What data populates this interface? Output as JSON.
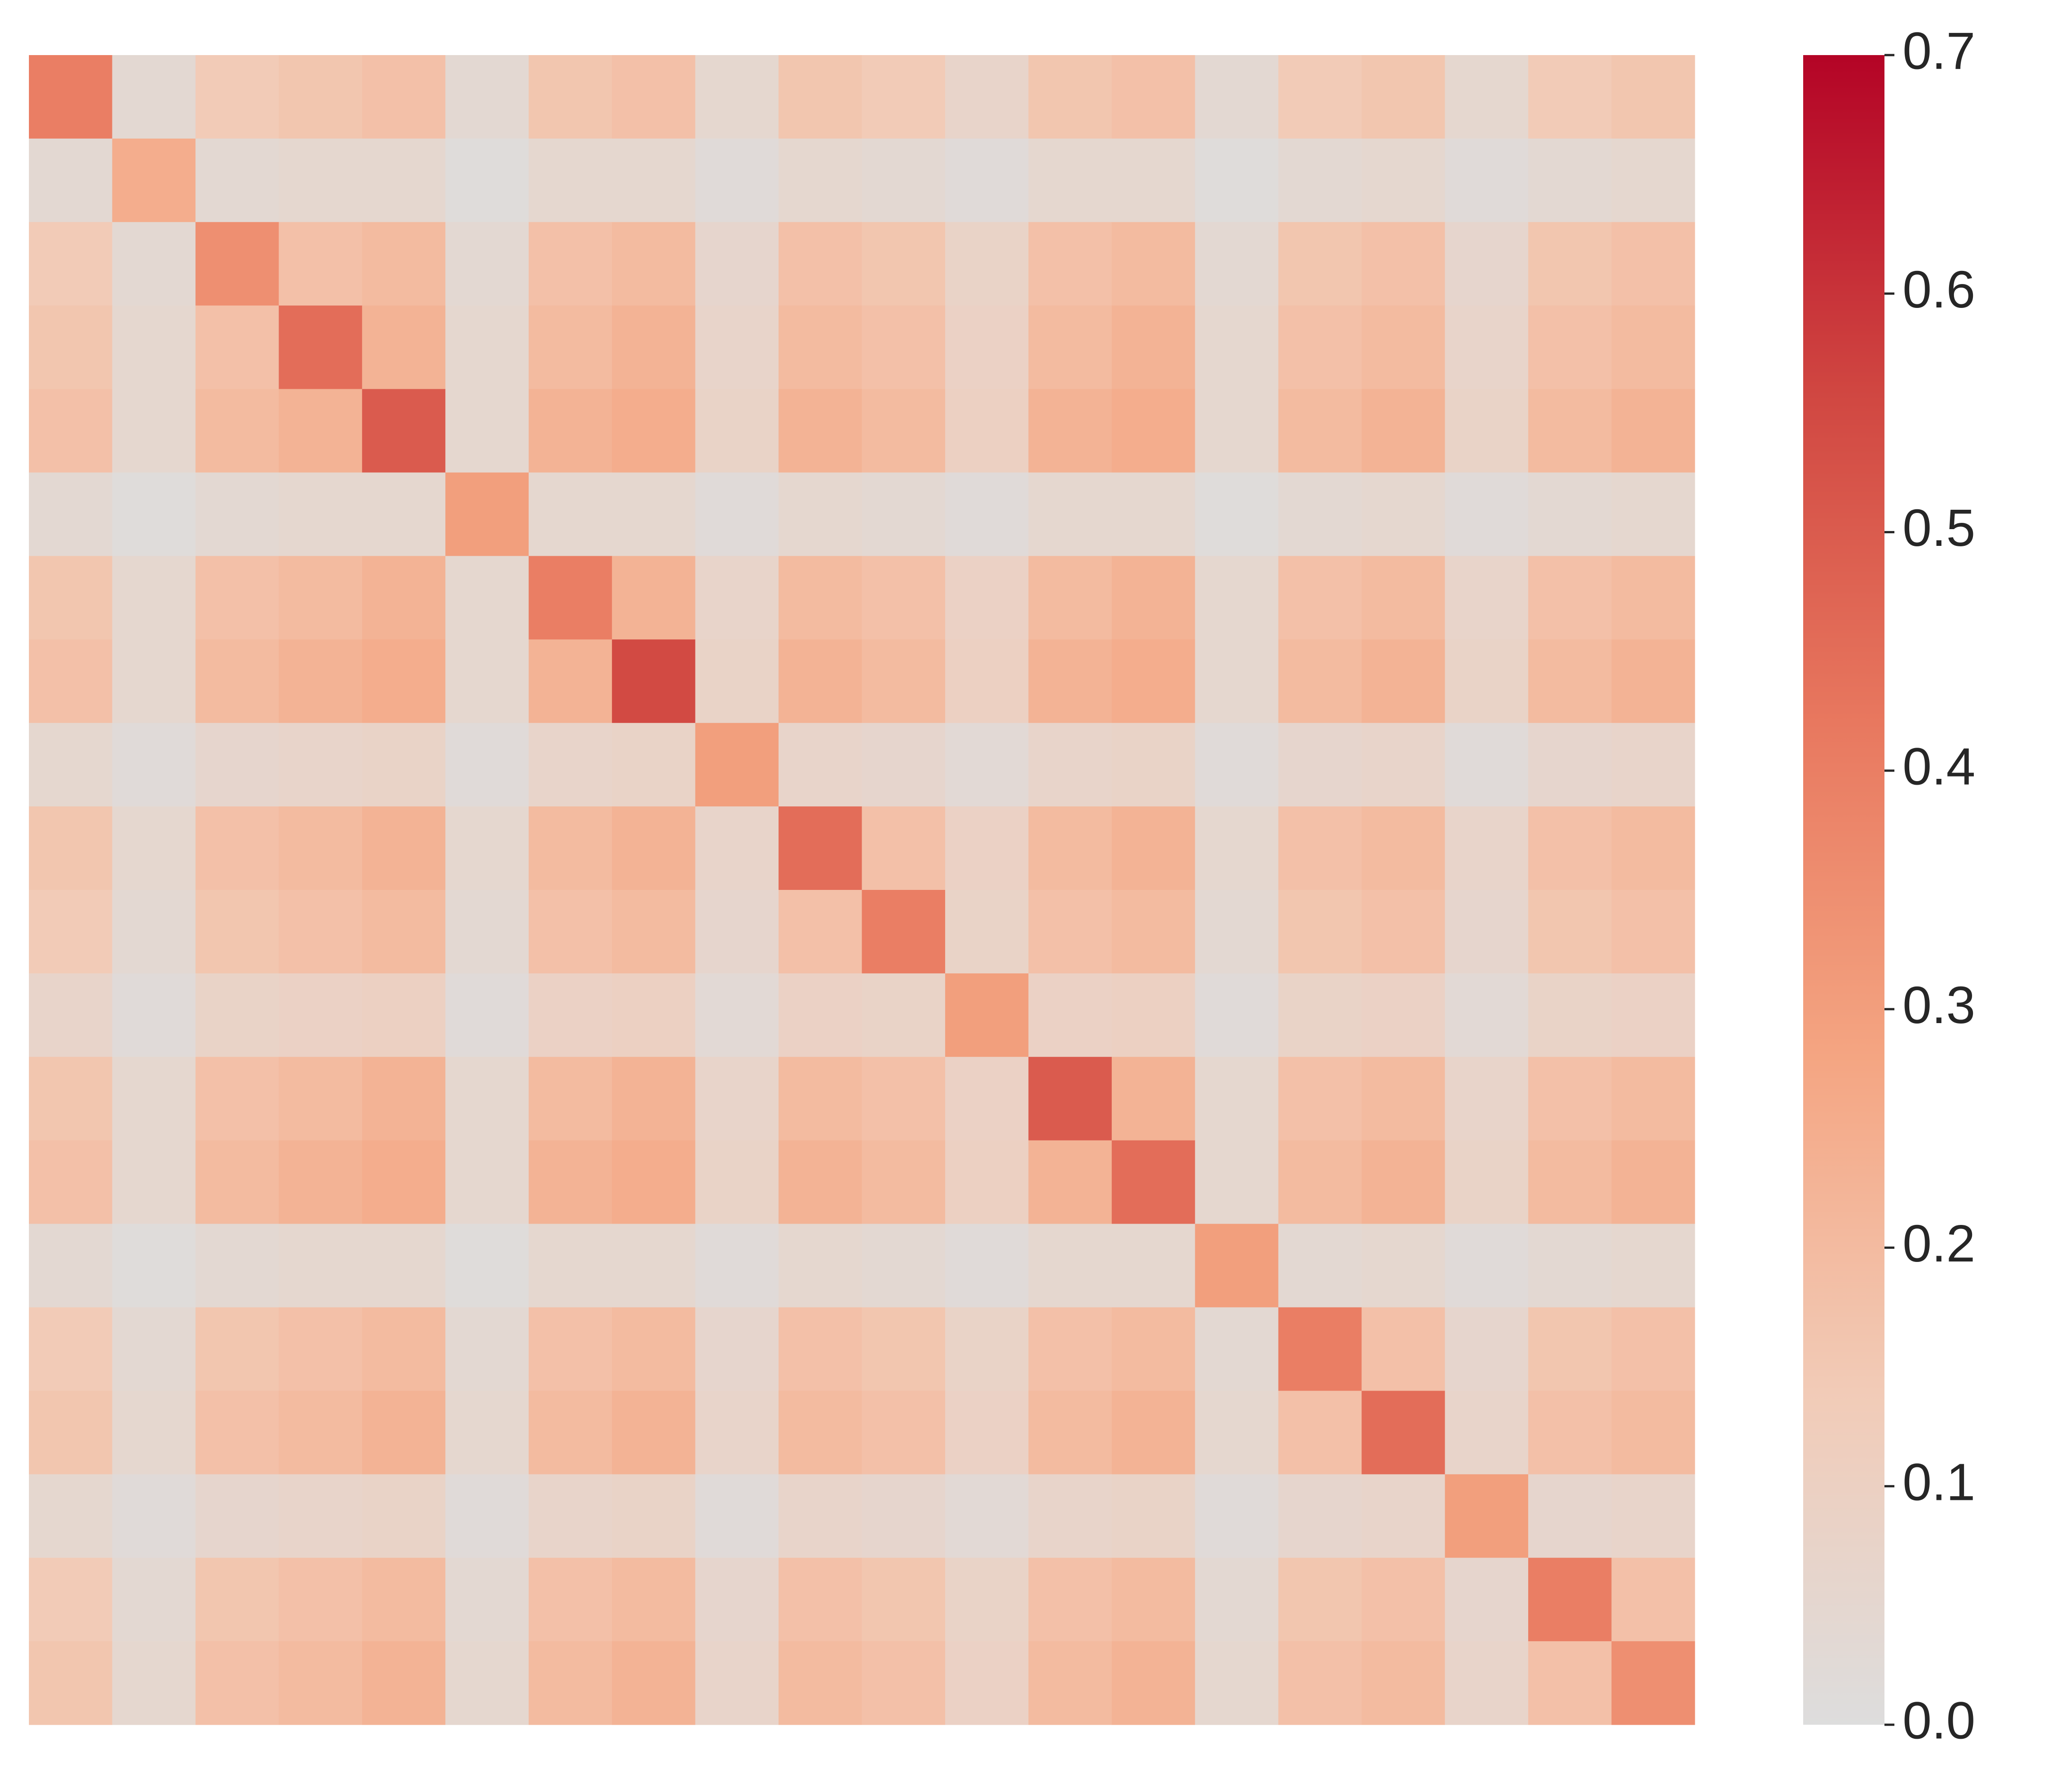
{
  "chart_data": {
    "type": "heatmap",
    "z": [
      [
        0.4,
        0.04,
        0.14,
        0.16,
        0.18,
        0.04,
        0.16,
        0.18,
        0.05,
        0.16,
        0.14,
        0.07,
        0.16,
        0.18,
        0.04,
        0.14,
        0.16,
        0.05,
        0.14,
        0.16
      ],
      [
        0.04,
        0.25,
        0.04,
        0.05,
        0.05,
        0.01,
        0.05,
        0.05,
        0.02,
        0.05,
        0.04,
        0.02,
        0.05,
        0.05,
        0.01,
        0.04,
        0.05,
        0.02,
        0.04,
        0.05
      ],
      [
        0.14,
        0.04,
        0.35,
        0.18,
        0.2,
        0.04,
        0.18,
        0.2,
        0.06,
        0.18,
        0.16,
        0.08,
        0.18,
        0.2,
        0.04,
        0.16,
        0.18,
        0.06,
        0.16,
        0.18
      ],
      [
        0.16,
        0.05,
        0.18,
        0.45,
        0.23,
        0.05,
        0.2,
        0.23,
        0.07,
        0.2,
        0.18,
        0.09,
        0.2,
        0.23,
        0.05,
        0.18,
        0.2,
        0.07,
        0.18,
        0.2
      ],
      [
        0.18,
        0.05,
        0.2,
        0.23,
        0.5,
        0.05,
        0.23,
        0.25,
        0.08,
        0.23,
        0.2,
        0.1,
        0.23,
        0.25,
        0.05,
        0.2,
        0.23,
        0.08,
        0.2,
        0.23
      ],
      [
        0.04,
        0.01,
        0.04,
        0.05,
        0.05,
        0.3,
        0.05,
        0.05,
        0.02,
        0.05,
        0.04,
        0.02,
        0.05,
        0.05,
        0.01,
        0.04,
        0.05,
        0.02,
        0.04,
        0.05
      ],
      [
        0.16,
        0.05,
        0.18,
        0.2,
        0.23,
        0.05,
        0.4,
        0.23,
        0.07,
        0.2,
        0.18,
        0.09,
        0.2,
        0.23,
        0.05,
        0.18,
        0.2,
        0.07,
        0.18,
        0.2
      ],
      [
        0.18,
        0.05,
        0.2,
        0.23,
        0.25,
        0.05,
        0.23,
        0.55,
        0.08,
        0.23,
        0.2,
        0.1,
        0.23,
        0.25,
        0.05,
        0.2,
        0.23,
        0.08,
        0.2,
        0.23
      ],
      [
        0.05,
        0.02,
        0.06,
        0.07,
        0.08,
        0.02,
        0.07,
        0.08,
        0.3,
        0.07,
        0.06,
        0.03,
        0.07,
        0.08,
        0.02,
        0.06,
        0.07,
        0.02,
        0.06,
        0.07
      ],
      [
        0.16,
        0.05,
        0.18,
        0.2,
        0.23,
        0.05,
        0.2,
        0.23,
        0.07,
        0.45,
        0.18,
        0.09,
        0.2,
        0.23,
        0.05,
        0.18,
        0.2,
        0.07,
        0.18,
        0.2
      ],
      [
        0.14,
        0.04,
        0.16,
        0.18,
        0.2,
        0.04,
        0.18,
        0.2,
        0.06,
        0.18,
        0.4,
        0.08,
        0.18,
        0.2,
        0.04,
        0.16,
        0.18,
        0.06,
        0.16,
        0.18
      ],
      [
        0.07,
        0.02,
        0.08,
        0.09,
        0.1,
        0.02,
        0.09,
        0.1,
        0.03,
        0.09,
        0.08,
        0.3,
        0.09,
        0.1,
        0.02,
        0.08,
        0.09,
        0.03,
        0.08,
        0.09
      ],
      [
        0.16,
        0.05,
        0.18,
        0.2,
        0.23,
        0.05,
        0.2,
        0.23,
        0.07,
        0.2,
        0.18,
        0.09,
        0.5,
        0.23,
        0.05,
        0.18,
        0.2,
        0.07,
        0.18,
        0.2
      ],
      [
        0.18,
        0.05,
        0.2,
        0.23,
        0.25,
        0.05,
        0.23,
        0.25,
        0.08,
        0.23,
        0.2,
        0.1,
        0.23,
        0.45,
        0.05,
        0.2,
        0.23,
        0.08,
        0.2,
        0.23
      ],
      [
        0.04,
        0.01,
        0.04,
        0.05,
        0.05,
        0.01,
        0.05,
        0.05,
        0.02,
        0.05,
        0.04,
        0.02,
        0.05,
        0.05,
        0.3,
        0.04,
        0.05,
        0.02,
        0.04,
        0.05
      ],
      [
        0.14,
        0.04,
        0.16,
        0.18,
        0.2,
        0.04,
        0.18,
        0.2,
        0.06,
        0.18,
        0.16,
        0.08,
        0.18,
        0.2,
        0.04,
        0.4,
        0.18,
        0.06,
        0.16,
        0.18
      ],
      [
        0.16,
        0.05,
        0.18,
        0.2,
        0.23,
        0.05,
        0.2,
        0.23,
        0.07,
        0.2,
        0.18,
        0.09,
        0.2,
        0.23,
        0.05,
        0.18,
        0.45,
        0.07,
        0.18,
        0.2
      ],
      [
        0.05,
        0.02,
        0.06,
        0.07,
        0.08,
        0.02,
        0.07,
        0.08,
        0.02,
        0.07,
        0.06,
        0.03,
        0.07,
        0.08,
        0.02,
        0.06,
        0.07,
        0.3,
        0.06,
        0.07
      ],
      [
        0.14,
        0.04,
        0.16,
        0.18,
        0.2,
        0.04,
        0.18,
        0.2,
        0.06,
        0.18,
        0.16,
        0.08,
        0.18,
        0.2,
        0.04,
        0.16,
        0.18,
        0.06,
        0.4,
        0.18
      ],
      [
        0.16,
        0.05,
        0.18,
        0.2,
        0.23,
        0.05,
        0.2,
        0.23,
        0.07,
        0.2,
        0.18,
        0.09,
        0.2,
        0.23,
        0.05,
        0.18,
        0.2,
        0.07,
        0.18,
        0.35
      ]
    ],
    "zlim": [
      0,
      0.7
    ],
    "zticks": [
      {
        "value": 0,
        "label": "0.0"
      },
      0.1,
      0.2,
      0.3,
      0.4,
      0.5,
      0.6,
      0.7
    ],
    "colors": [
      "#dddddd",
      "#f2cbb7",
      "#f4a582",
      "#e8785f",
      "#d04641",
      "#b40426"
    ]
  }
}
